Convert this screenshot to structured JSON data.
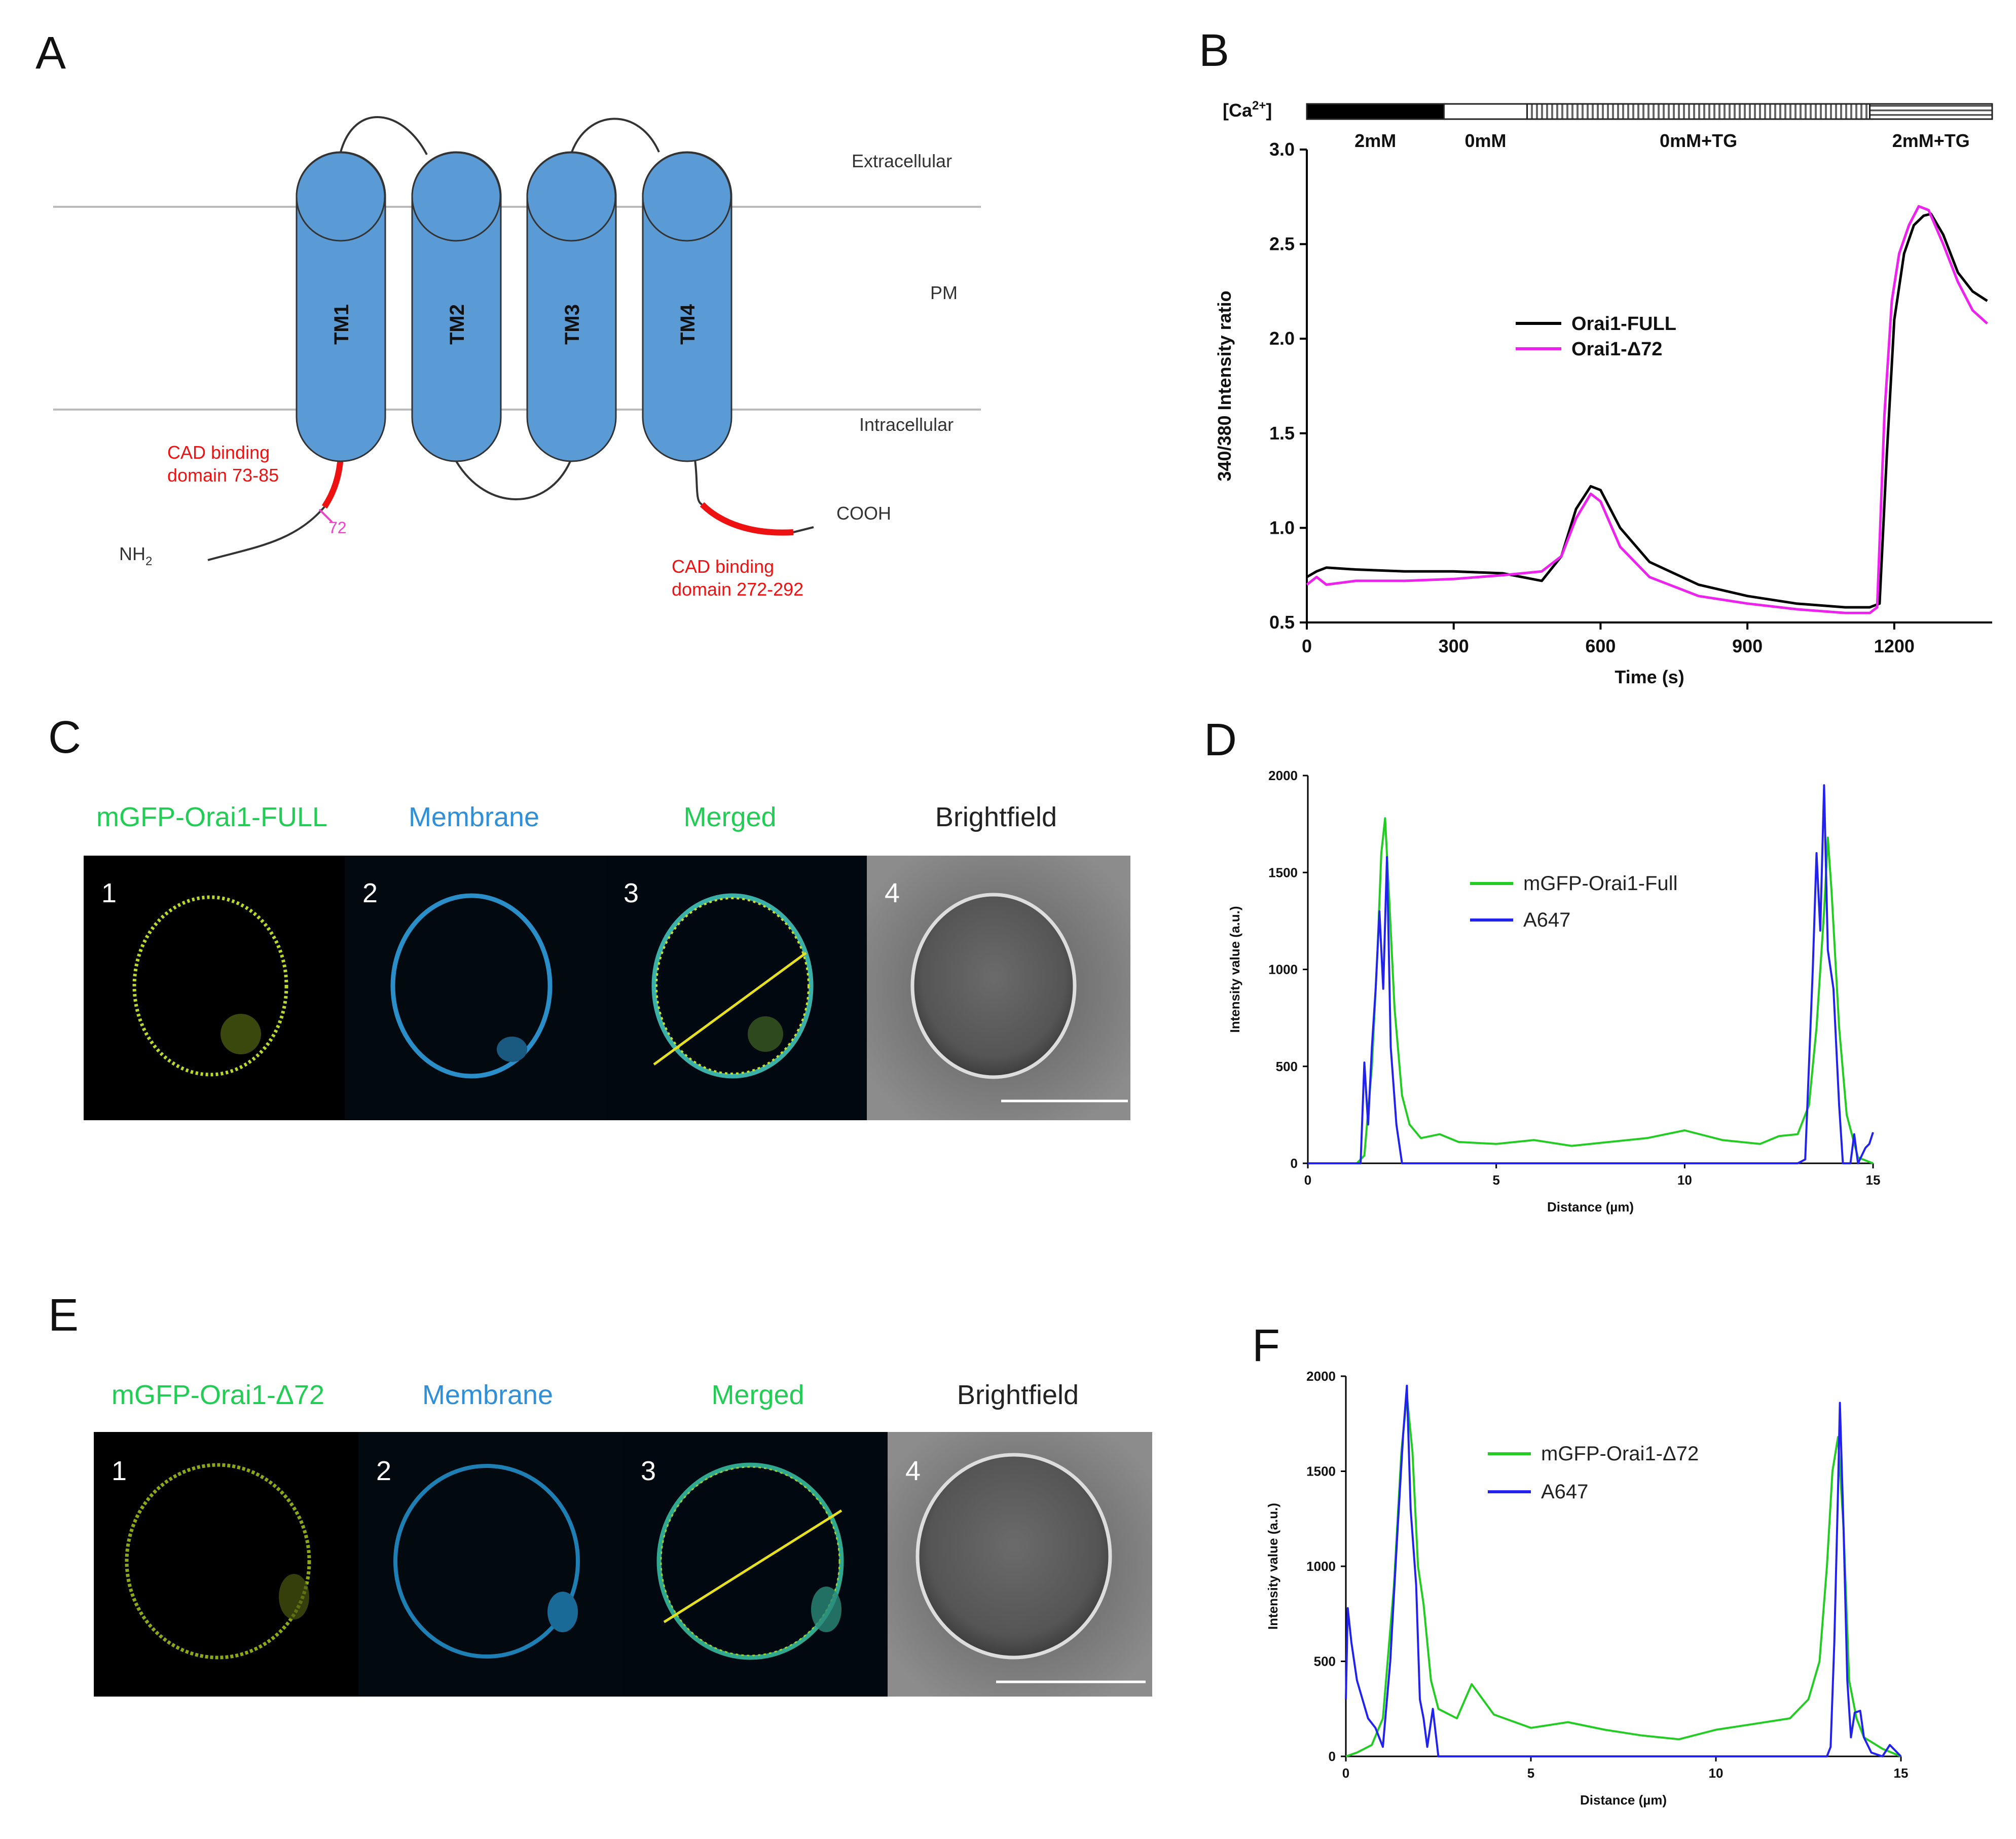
{
  "panels": {
    "A": "A",
    "B": "B",
    "C": "C",
    "D": "D",
    "E": "E",
    "F": "F"
  },
  "diagram": {
    "tm_labels": [
      "TM1",
      "TM2",
      "TM3",
      "TM4"
    ],
    "extracellular": "Extracellular",
    "pm": "PM",
    "intracellular": "Intracellular",
    "cad_n_line1": "CAD binding",
    "cad_n_line2": "domain 73-85",
    "cad_c_line1": "CAD binding",
    "cad_c_line2": "domain 272-292",
    "truncation": "72",
    "nh2": "NH",
    "nh2_sub": "2",
    "cooh": "COOH",
    "colors": {
      "helix": "#5b9bd5",
      "cad": "#ee1111",
      "truncation": "#ee44cc"
    }
  },
  "ca_bar": {
    "label_pre": "[Ca",
    "label_sup": "2+",
    "label_post": "]",
    "segments": [
      {
        "label": "2mM",
        "start": 0,
        "end": 280,
        "pattern": "solid"
      },
      {
        "label": "0mM",
        "start": 280,
        "end": 450,
        "pattern": "empty"
      },
      {
        "label": "0mM+TG",
        "start": 450,
        "end": 1150,
        "pattern": "vertical"
      },
      {
        "label": "2mM+TG",
        "start": 1150,
        "end": 1400,
        "pattern": "horizontal"
      }
    ]
  },
  "chart_data": [
    {
      "id": "B",
      "type": "line",
      "xlabel": "Time (s)",
      "ylabel": "340/380 Intensity ratio",
      "xlim": [
        0,
        1400
      ],
      "ylim": [
        0.5,
        3.0
      ],
      "xticks": [
        0,
        300,
        600,
        900,
        1200
      ],
      "yticks": [
        0.5,
        1.0,
        1.5,
        2.0,
        2.5,
        3.0
      ],
      "ytick_labels": [
        "0.5",
        "1.0",
        "1.5",
        "2.0",
        "2.5",
        "3.0"
      ],
      "legend_position": "center-right",
      "series": [
        {
          "name": "Orai1-FULL",
          "color": "#000000",
          "x": [
            0,
            20,
            40,
            100,
            200,
            300,
            400,
            480,
            520,
            550,
            580,
            600,
            640,
            700,
            800,
            900,
            1000,
            1100,
            1150,
            1170,
            1185,
            1200,
            1220,
            1240,
            1260,
            1275,
            1300,
            1330,
            1360,
            1390
          ],
          "y": [
            0.74,
            0.77,
            0.79,
            0.78,
            0.77,
            0.77,
            0.76,
            0.72,
            0.85,
            1.1,
            1.22,
            1.2,
            1.0,
            0.82,
            0.7,
            0.64,
            0.6,
            0.58,
            0.58,
            0.6,
            1.4,
            2.1,
            2.45,
            2.6,
            2.65,
            2.66,
            2.55,
            2.35,
            2.25,
            2.2
          ]
        },
        {
          "name": "Orai1-Δ72",
          "color": "#ee22ee",
          "x": [
            0,
            20,
            40,
            100,
            200,
            300,
            400,
            480,
            520,
            550,
            580,
            600,
            640,
            700,
            800,
            900,
            1000,
            1100,
            1150,
            1165,
            1180,
            1195,
            1210,
            1230,
            1250,
            1270,
            1300,
            1330,
            1360,
            1390
          ],
          "y": [
            0.7,
            0.74,
            0.7,
            0.72,
            0.72,
            0.73,
            0.75,
            0.77,
            0.85,
            1.05,
            1.18,
            1.14,
            0.9,
            0.74,
            0.64,
            0.6,
            0.57,
            0.55,
            0.55,
            0.58,
            1.6,
            2.2,
            2.45,
            2.6,
            2.7,
            2.68,
            2.5,
            2.3,
            2.15,
            2.08
          ]
        }
      ]
    },
    {
      "id": "D",
      "type": "line",
      "xlabel": "Distance (µm)",
      "ylabel": "Intensity value (a.u.)",
      "xlim": [
        0,
        15
      ],
      "ylim": [
        0,
        2000
      ],
      "xticks": [
        0,
        5,
        10,
        15
      ],
      "yticks": [
        0,
        500,
        1000,
        1500,
        2000
      ],
      "legend_position": "top-center",
      "series": [
        {
          "name": "mGFP-Orai1-Full",
          "color": "#22cc22",
          "x": [
            0,
            1.3,
            1.5,
            1.7,
            1.85,
            1.95,
            2.05,
            2.15,
            2.3,
            2.5,
            2.7,
            3,
            3.5,
            4,
            5,
            6,
            7,
            8,
            9,
            10,
            11,
            12,
            12.5,
            13,
            13.3,
            13.5,
            13.7,
            13.8,
            13.9,
            14.1,
            14.3,
            14.6,
            15
          ],
          "y": [
            0,
            0,
            40,
            500,
            1100,
            1600,
            1780,
            1400,
            800,
            350,
            200,
            130,
            150,
            110,
            100,
            120,
            90,
            110,
            130,
            170,
            120,
            100,
            140,
            150,
            300,
            700,
            1300,
            1680,
            1400,
            700,
            250,
            30,
            0
          ]
        },
        {
          "name": "A647",
          "color": "#2222ee",
          "x": [
            0,
            1.4,
            1.5,
            1.6,
            1.7,
            1.8,
            1.9,
            2.0,
            2.1,
            2.2,
            2.35,
            2.5,
            3,
            13,
            13.2,
            13.4,
            13.5,
            13.6,
            13.7,
            13.8,
            13.95,
            14.1,
            14.2,
            14.4,
            14.5,
            14.6,
            14.8,
            14.9,
            15
          ],
          "y": [
            0,
            0,
            520,
            200,
            600,
            900,
            1300,
            900,
            1580,
            600,
            200,
            0,
            0,
            0,
            20,
            1000,
            1600,
            1200,
            1950,
            1100,
            900,
            300,
            0,
            0,
            150,
            0,
            80,
            100,
            160
          ]
        }
      ]
    },
    {
      "id": "F",
      "type": "line",
      "xlabel": "Distance (µm)",
      "ylabel": "Intensity value (a.u.)",
      "xlim": [
        0,
        15
      ],
      "ylim": [
        0,
        2000
      ],
      "xticks": [
        0,
        5,
        10,
        15
      ],
      "yticks": [
        0,
        500,
        1000,
        1500,
        2000
      ],
      "legend_position": "top-center",
      "series": [
        {
          "name": "mGFP-Orai1-Δ72",
          "color": "#22cc22",
          "x": [
            0,
            0.3,
            0.7,
            1.0,
            1.3,
            1.5,
            1.65,
            1.8,
            1.95,
            2.1,
            2.3,
            2.5,
            3,
            3.4,
            4,
            5,
            6,
            7,
            8,
            9,
            10,
            11,
            12,
            12.5,
            12.8,
            13.0,
            13.15,
            13.3,
            13.45,
            13.6,
            13.8,
            14,
            14.5,
            15
          ],
          "y": [
            0,
            20,
            60,
            200,
            900,
            1600,
            1900,
            1600,
            1000,
            800,
            400,
            250,
            200,
            380,
            220,
            150,
            180,
            140,
            110,
            90,
            140,
            170,
            200,
            300,
            500,
            1000,
            1500,
            1680,
            1200,
            400,
            200,
            100,
            40,
            0
          ]
        },
        {
          "name": "A647",
          "color": "#2222ee",
          "x": [
            0,
            0.05,
            0.15,
            0.3,
            0.45,
            0.6,
            0.8,
            1.0,
            1.2,
            1.4,
            1.55,
            1.65,
            1.75,
            1.9,
            2.0,
            2.1,
            2.2,
            2.35,
            2.5,
            2.7,
            3,
            13,
            13.1,
            13.2,
            13.3,
            13.35,
            13.45,
            13.55,
            13.65,
            13.75,
            13.9,
            14,
            14.2,
            14.5,
            14.7,
            15
          ],
          "y": [
            300,
            780,
            600,
            400,
            300,
            200,
            150,
            50,
            500,
            1200,
            1700,
            1950,
            1300,
            900,
            300,
            200,
            50,
            250,
            0,
            0,
            0,
            0,
            50,
            600,
            1400,
            1860,
            1200,
            400,
            100,
            230,
            240,
            100,
            20,
            0,
            60,
            0
          ]
        }
      ]
    }
  ],
  "micrographs": [
    {
      "id": "C",
      "titles": [
        "mGFP-Orai1-FULL",
        "Membrane",
        "Merged",
        "Brightfield"
      ],
      "numbers": [
        "1",
        "2",
        "3",
        "4"
      ]
    },
    {
      "id": "E",
      "titles": [
        "mGFP-Orai1-Δ72",
        "Membrane",
        "Merged",
        "Brightfield"
      ],
      "numbers": [
        "1",
        "2",
        "3",
        "4"
      ]
    }
  ],
  "colors": {
    "green": "#22cc55",
    "blue": "#2f8fd8",
    "black": "#222222",
    "yellow": "#e6e020"
  }
}
